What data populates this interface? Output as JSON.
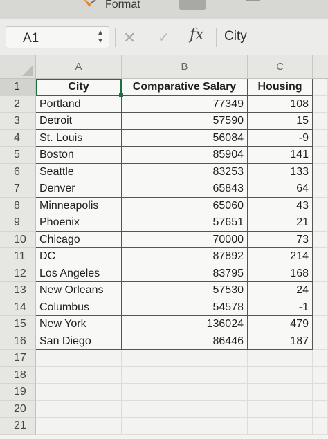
{
  "ribbon": {
    "format_label": "Format"
  },
  "formula_bar": {
    "name_box": "A1",
    "fx_label": "fx",
    "formula": "City"
  },
  "columns": [
    "A",
    "B",
    "C"
  ],
  "rows": [
    {
      "num": "1",
      "a": "City",
      "b": "Comparative Salary",
      "c": "Housing"
    },
    {
      "num": "2",
      "a": "Portland",
      "b": "77349",
      "c": "108"
    },
    {
      "num": "3",
      "a": "Detroit",
      "b": "57590",
      "c": "15"
    },
    {
      "num": "4",
      "a": "St. Louis",
      "b": "56084",
      "c": "-9"
    },
    {
      "num": "5",
      "a": "Boston",
      "b": "85904",
      "c": "141"
    },
    {
      "num": "6",
      "a": "Seattle",
      "b": "83253",
      "c": "133"
    },
    {
      "num": "7",
      "a": "Denver",
      "b": "65843",
      "c": "64"
    },
    {
      "num": "8",
      "a": "Minneapolis",
      "b": "65060",
      "c": "43"
    },
    {
      "num": "9",
      "a": "Phoenix",
      "b": "57651",
      "c": "21"
    },
    {
      "num": "10",
      "a": "Chicago",
      "b": "70000",
      "c": "73"
    },
    {
      "num": "11",
      "a": "DC",
      "b": "87892",
      "c": "214"
    },
    {
      "num": "12",
      "a": "Los Angeles",
      "b": "83795",
      "c": "168"
    },
    {
      "num": "13",
      "a": "New Orleans",
      "b": "57530",
      "c": "24"
    },
    {
      "num": "14",
      "a": "Columbus",
      "b": "54578",
      "c": "-1"
    },
    {
      "num": "15",
      "a": "New York",
      "b": "136024",
      "c": "479"
    },
    {
      "num": "16",
      "a": "San Diego",
      "b": "86446",
      "c": "187"
    },
    {
      "num": "17",
      "a": "",
      "b": "",
      "c": ""
    },
    {
      "num": "18",
      "a": "",
      "b": "",
      "c": ""
    },
    {
      "num": "19",
      "a": "",
      "b": "",
      "c": ""
    },
    {
      "num": "20",
      "a": "",
      "b": "",
      "c": ""
    },
    {
      "num": "21",
      "a": "",
      "b": "",
      "c": ""
    }
  ]
}
